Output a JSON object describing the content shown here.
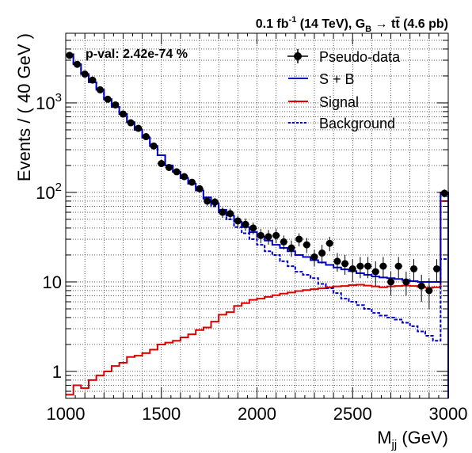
{
  "chart_data": {
    "type": "line",
    "title": "0.1 fb-1 (14 TeV), GB → tt̄ (4.6 pb)",
    "title_parts": {
      "lumi": "0.1 fb",
      "lumi_sup": "-1",
      "energy": " (14 TeV), G",
      "g_sub": "B",
      "arrow": " → t",
      "tbar": "t",
      "xsec": " (4.6 pb)"
    },
    "annotation": "p-val: 2.42e-74 %",
    "xlabel_main": "M",
    "xlabel_sub": "jj",
    "xlabel_unit": " (GeV)",
    "ylabel": "Events / ( 40 GeV )",
    "xlim": [
      1000,
      3000
    ],
    "ylim": [
      0.5,
      6000
    ],
    "y_scale": "log",
    "grid": true,
    "legend_position": "top-right",
    "x_ticks": [
      "1000",
      "1500",
      "2000",
      "2500",
      "3000"
    ],
    "y_ticks": [
      {
        "value": 1,
        "base": "1",
        "exp": ""
      },
      {
        "value": 10,
        "base": "10",
        "exp": ""
      },
      {
        "value": 100,
        "base": "10",
        "exp": "2"
      },
      {
        "value": 1000,
        "base": "10",
        "exp": "3"
      }
    ],
    "bin_edges": [
      1000,
      1040,
      1080,
      1120,
      1160,
      1200,
      1240,
      1280,
      1320,
      1360,
      1400,
      1440,
      1480,
      1520,
      1560,
      1600,
      1640,
      1680,
      1720,
      1760,
      1800,
      1840,
      1880,
      1920,
      1960,
      2000,
      2040,
      2080,
      2120,
      2160,
      2200,
      2240,
      2280,
      2320,
      2360,
      2400,
      2440,
      2480,
      2520,
      2560,
      2600,
      2640,
      2680,
      2720,
      2760,
      2800,
      2840,
      2880,
      2920,
      2960,
      3000
    ],
    "series": [
      {
        "name": "Pseudo-data",
        "style": "points",
        "color": "#000000",
        "values": [
          3400,
          2700,
          2100,
          1800,
          1400,
          1100,
          950,
          750,
          600,
          520,
          420,
          330,
          210,
          190,
          170,
          150,
          130,
          110,
          80,
          78,
          60,
          58,
          48,
          44,
          40,
          33,
          32,
          33,
          28,
          24,
          30,
          26,
          19,
          21,
          27,
          17,
          16,
          14,
          15,
          15,
          13,
          15,
          10,
          15,
          10,
          14,
          9,
          8,
          14,
          98
        ],
        "errors": [
          58,
          52,
          46,
          42,
          37,
          33,
          31,
          27,
          24,
          23,
          20,
          18,
          14,
          14,
          13,
          12,
          11,
          10,
          9,
          9,
          8,
          8,
          7,
          7,
          6,
          6,
          6,
          6,
          5,
          5,
          5,
          5,
          4,
          5,
          5,
          4,
          4,
          4,
          4,
          4,
          4,
          4,
          3,
          4,
          3,
          4,
          3,
          3,
          4,
          10
        ]
      },
      {
        "name": "S + B",
        "style": "step",
        "color": "#0000cc",
        "values": [
          3500,
          2700,
          2100,
          1700,
          1400,
          1100,
          900,
          750,
          610,
          500,
          410,
          330,
          260,
          200,
          170,
          145,
          125,
          105,
          88,
          75,
          64,
          55,
          47,
          41,
          36,
          32,
          29,
          26,
          24,
          22,
          20,
          19,
          17.5,
          16.5,
          15.5,
          14.5,
          13.8,
          13.2,
          12.5,
          12,
          11.5,
          11.2,
          11,
          10.8,
          10.5,
          10.2,
          10,
          10,
          10,
          100
        ]
      },
      {
        "name": "Signal",
        "style": "step",
        "color": "#dd0000",
        "values": [
          0.55,
          0.7,
          0.65,
          0.8,
          0.9,
          1.0,
          1.15,
          1.25,
          1.45,
          1.5,
          1.6,
          1.75,
          2.0,
          2.1,
          2.2,
          2.4,
          2.6,
          2.9,
          3.1,
          3.6,
          4.3,
          4.6,
          5.4,
          5.8,
          6.3,
          6.5,
          6.8,
          7.1,
          7.4,
          7.6,
          7.9,
          8.1,
          8.3,
          8.5,
          8.7,
          8.9,
          9.0,
          9.2,
          9.3,
          9.1,
          8.9,
          8.7,
          8.9,
          9.0,
          9.1,
          9.0,
          8.8,
          8.6,
          8.7,
          80
        ]
      },
      {
        "name": "Background",
        "style": "dashed-step",
        "color": "#0000cc",
        "values": [
          3500,
          2700,
          2100,
          1700,
          1400,
          1100,
          900,
          750,
          610,
          500,
          410,
          330,
          260,
          200,
          170,
          145,
          125,
          105,
          85,
          70,
          58,
          50,
          41,
          35,
          30,
          26,
          22,
          20,
          17,
          15,
          13,
          12,
          11,
          9.5,
          8.5,
          7.5,
          6.5,
          6,
          5.5,
          5,
          4.5,
          4.2,
          4,
          3.8,
          3.5,
          3.2,
          2.8,
          2.5,
          2.2,
          18
        ]
      }
    ]
  }
}
